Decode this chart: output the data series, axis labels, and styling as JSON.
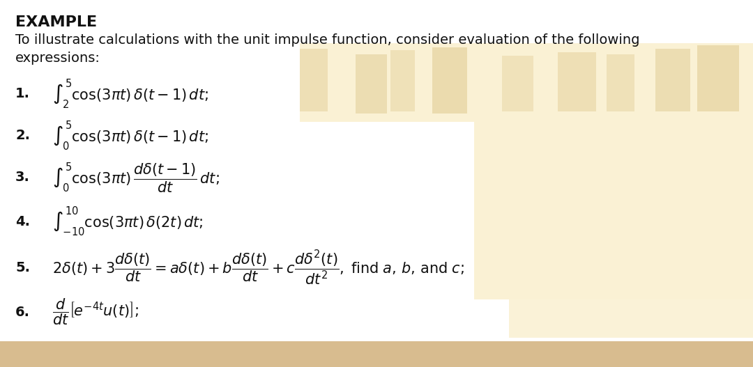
{
  "background_color": "#ffffff",
  "warm_color": "#faf0d0",
  "warm_color2": "#e8d4a0",
  "bottom_bar_color": "#c8a060",
  "figsize": [
    10.8,
    5.27
  ],
  "dpi": 100,
  "title": "EXAMPLE",
  "line1": "To illustrate calculations with the unit impulse function, consider evaluation of the following",
  "line2": "expressions:",
  "items": [
    {
      "num": "1.",
      "text": "$\\int_2^5 \\cos(3\\pi t)\\,\\delta(t-1)\\,dt;$"
    },
    {
      "num": "2.",
      "text": "$\\int_0^5 \\cos(3\\pi t)\\,\\delta(t-1)\\,dt;$"
    },
    {
      "num": "3.",
      "text": "$\\int_0^5 \\cos(3\\pi t)\\,\\dfrac{d\\delta(t-1)}{dt}\\,dt;$"
    },
    {
      "num": "4.",
      "text": "$\\int_{-10}^{10} \\cos(3\\pi t)\\,\\delta(2t)\\,dt;$"
    },
    {
      "num": "5.",
      "text": "$2\\delta(t)+3\\dfrac{d\\delta(t)}{dt} = a\\delta(t)+b\\dfrac{d\\delta(t)}{dt}+c\\dfrac{d\\delta^2(t)}{dt^2},\\;\\mathrm{find}\\; a,\\, b,\\, \\mathrm{and}\\; c;$"
    },
    {
      "num": "6.",
      "text": "$\\dfrac{d}{dt}\\left[e^{-4t}u(t)\\right];$"
    }
  ]
}
